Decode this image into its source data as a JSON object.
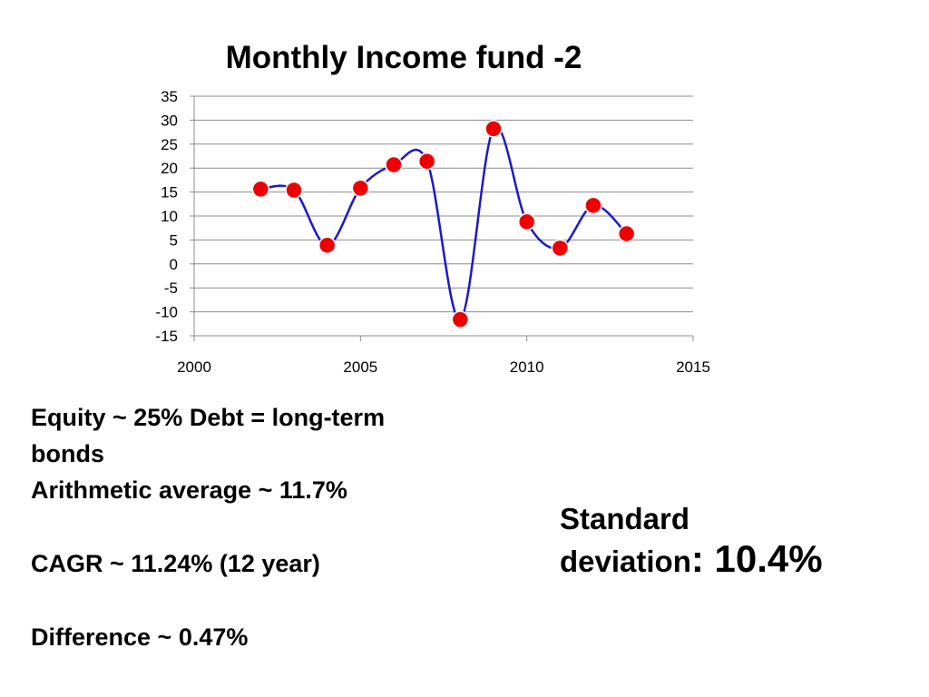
{
  "chart_data": {
    "type": "line",
    "title": "Monthly Income fund -2",
    "xlabel": "",
    "ylabel": "",
    "xlim": [
      2000,
      2015
    ],
    "ylim": [
      -15,
      35
    ],
    "x_ticks": [
      2000,
      2005,
      2010,
      2015
    ],
    "y_ticks": [
      35,
      30,
      25,
      20,
      15,
      10,
      5,
      0,
      -5,
      -10,
      -15
    ],
    "grid": "horizontal",
    "line_color": "#1a1acc",
    "marker_color": "#ee0000",
    "series": [
      {
        "x": [
          2002,
          2003,
          2004,
          2005,
          2006,
          2007,
          2008,
          2009,
          2010,
          2011,
          2012,
          2013
        ],
        "y": [
          15.6,
          15.4,
          3.9,
          15.8,
          20.7,
          21.4,
          -11.6,
          28.2,
          8.8,
          3.3,
          12.2,
          6.3
        ]
      }
    ]
  },
  "notes": {
    "line1": "Equity ~ 25% Debt = long-term",
    "line2": "bonds",
    "line3": "Arithmetic average ~ 11.7%",
    "line4": "CAGR ~ 11.24% (12 year)",
    "line5": "Difference ~ 0.47%"
  },
  "stddev": {
    "label_line1": "Standard",
    "label_line2": "deviation",
    "value": ": 10.4%"
  }
}
